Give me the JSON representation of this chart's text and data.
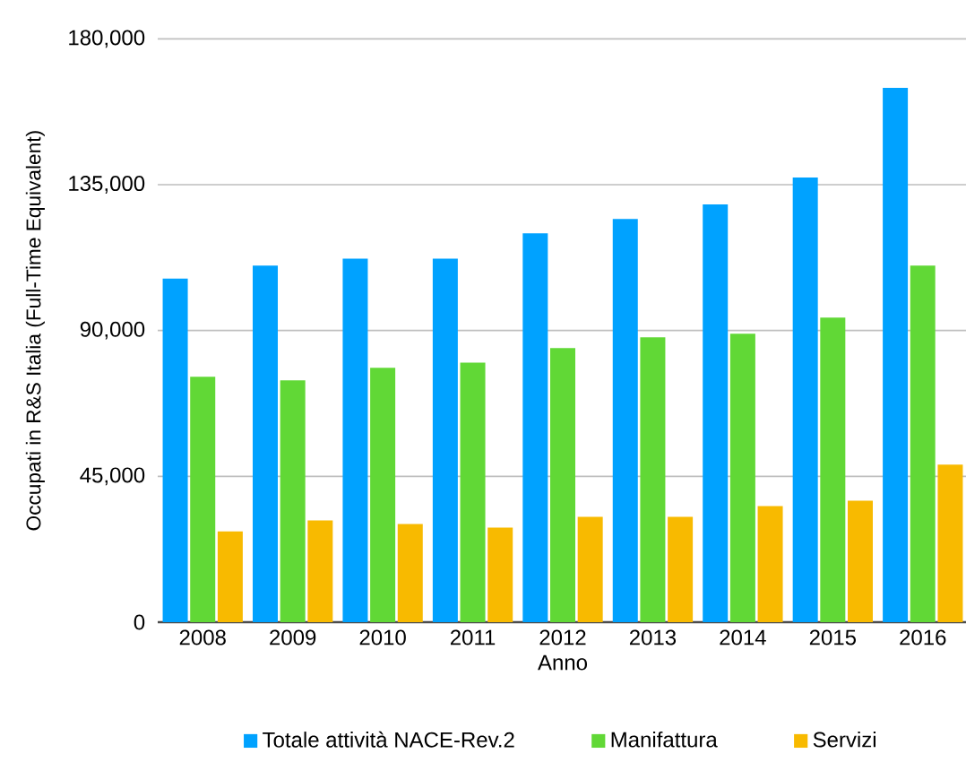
{
  "chart_data": {
    "type": "bar",
    "xlabel": "Anno",
    "ylabel": "Occupati in R&S Italia (Full-Time Equivalent)",
    "categories": [
      "2008",
      "2009",
      "2010",
      "2011",
      "2012",
      "2013",
      "2014",
      "2015",
      "2016"
    ],
    "series": [
      {
        "name": "Totale attività NACE-Rev.2",
        "color": "#00a2ff",
        "values": [
          106000,
          110000,
          112200,
          112200,
          120000,
          124400,
          128900,
          137200,
          164900
        ]
      },
      {
        "name": "Manifattura",
        "color": "#61d836",
        "values": [
          75700,
          74600,
          78500,
          80100,
          84600,
          87900,
          89000,
          94000,
          110000
        ]
      },
      {
        "name": "Servizi",
        "color": "#f8ba00",
        "values": [
          28000,
          31400,
          30300,
          29200,
          32500,
          32500,
          35800,
          37500,
          48600
        ]
      }
    ],
    "ylim": [
      0,
      180000
    ],
    "yticks": [
      {
        "value": 0,
        "label": "0"
      },
      {
        "value": 45000,
        "label": "45,000"
      },
      {
        "value": 90000,
        "label": "90,000"
      },
      {
        "value": 135000,
        "label": "135,000"
      },
      {
        "value": 180000,
        "label": "180,000"
      }
    ],
    "grid": "y",
    "legend": "bottom"
  }
}
